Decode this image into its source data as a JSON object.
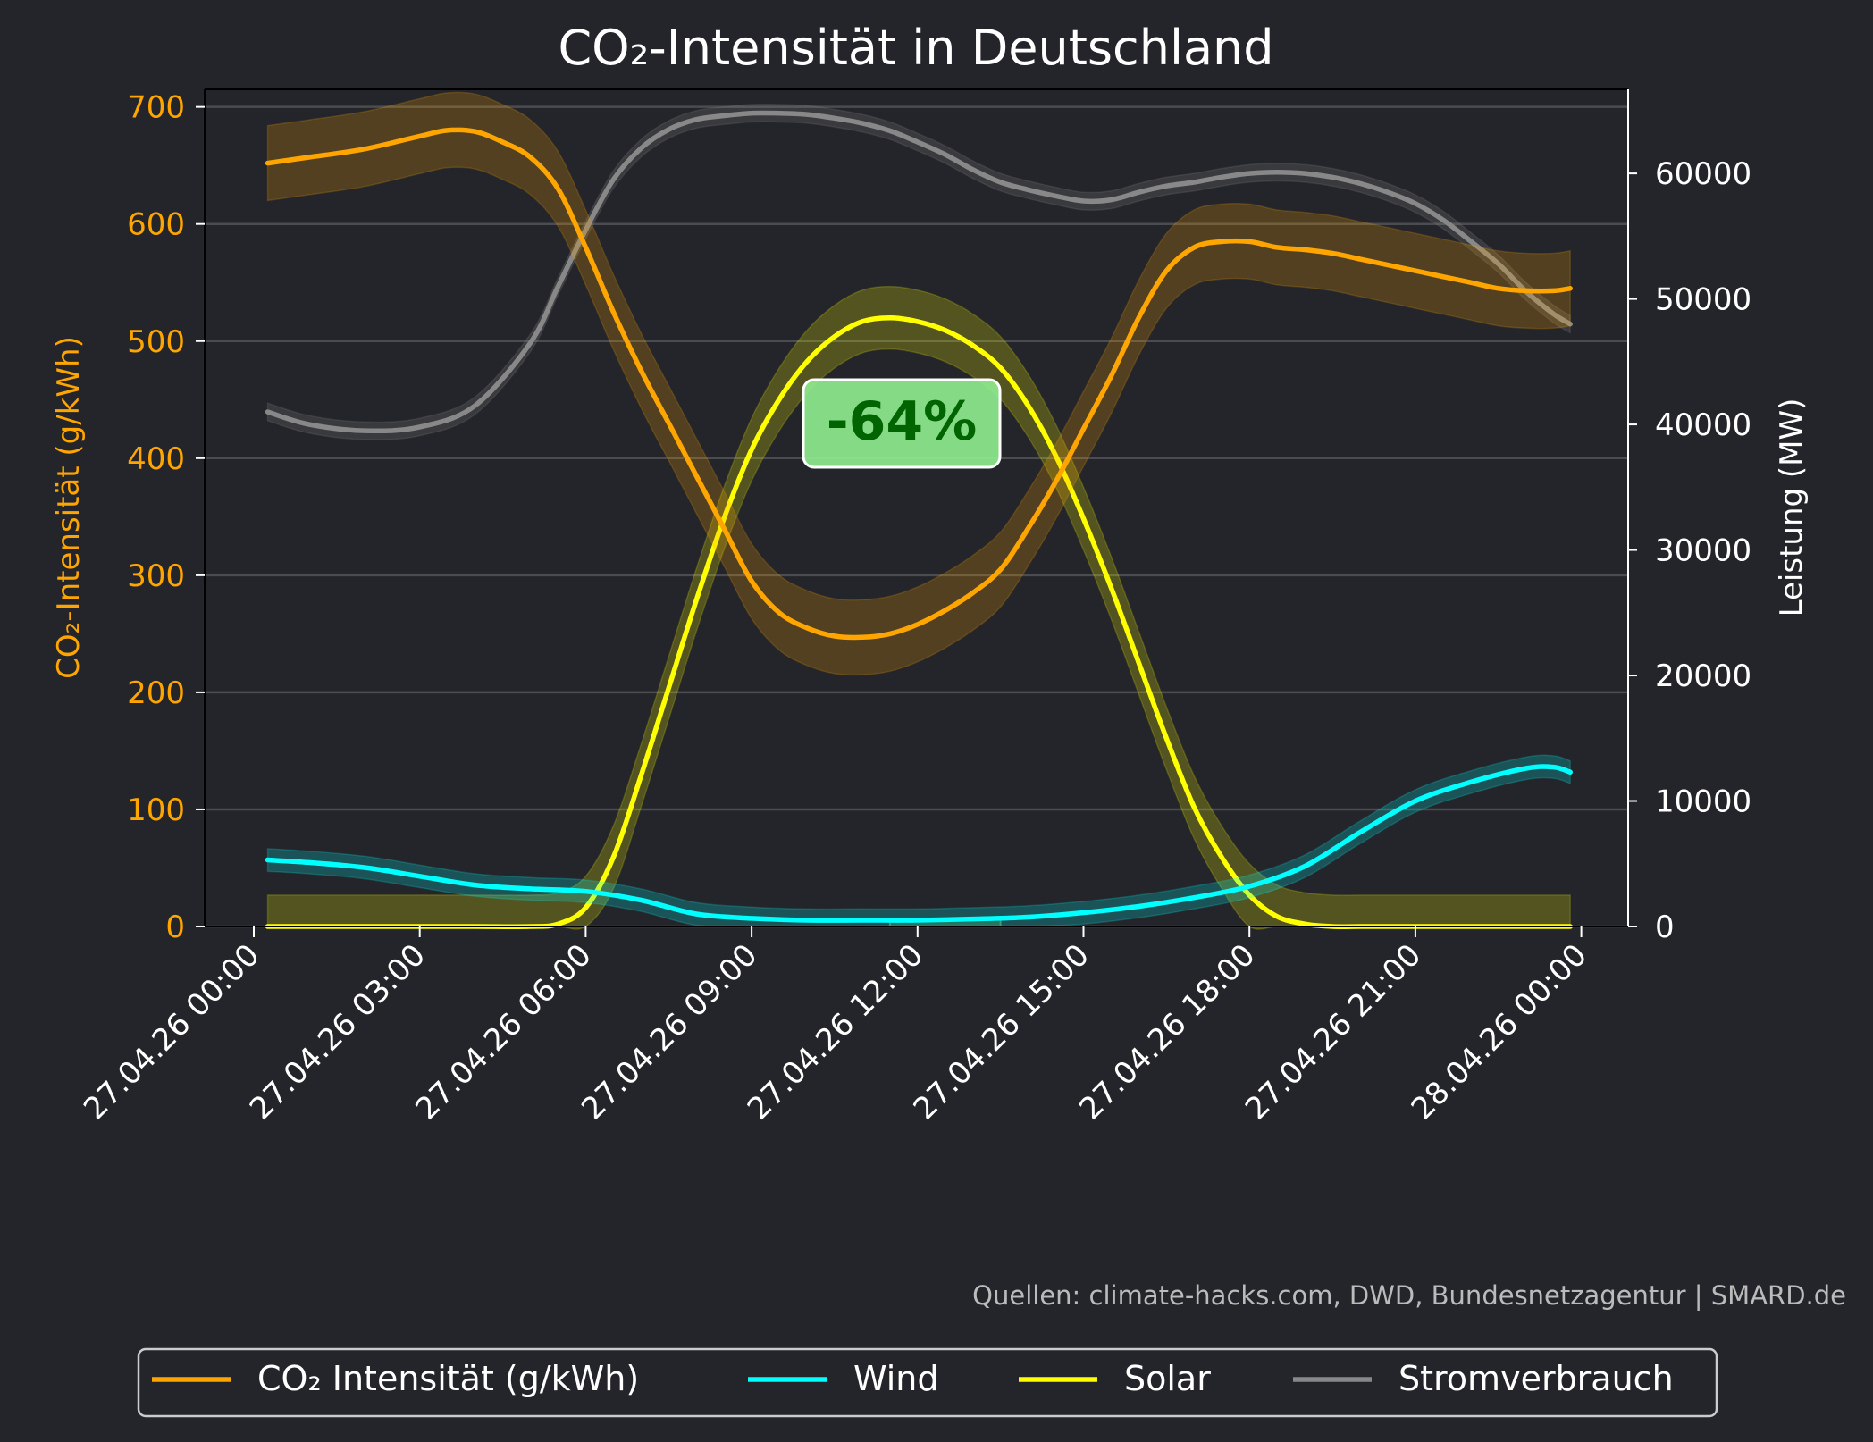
{
  "chart_data": {
    "type": "line",
    "title": "CO₂-Intensität in Deutschland",
    "x_axis": {
      "range": [
        "27.04.26 00:00",
        "28.04.26 00:00"
      ],
      "ticks": [
        "27.04.26 00:00",
        "27.04.26 03:00",
        "27.04.26 06:00",
        "27.04.26 09:00",
        "27.04.26 12:00",
        "27.04.26 15:00",
        "27.04.26 18:00",
        "27.04.26 21:00",
        "28.04.26 00:00"
      ]
    },
    "y_left": {
      "label": "CO₂-Intensität (g/kWh)",
      "range": [
        0,
        715
      ],
      "ticks": [
        0,
        100,
        200,
        300,
        400,
        500,
        600,
        700
      ]
    },
    "y_right": {
      "label": "Leistung (MW)",
      "range": [
        0,
        66700
      ],
      "ticks": [
        0,
        10000,
        20000,
        30000,
        40000,
        50000,
        60000
      ]
    },
    "grid": true,
    "highlight": {
      "x_start": 11.5,
      "x_end": 13.5,
      "label": "-64%"
    },
    "series": [
      {
        "name": "CO₂ Intensität (g/kWh)",
        "axis": "left",
        "color": "#ffa500",
        "band": 32,
        "x": [
          0.25,
          1,
          2,
          3,
          3.5,
          4,
          4.5,
          5,
          5.5,
          6,
          6.5,
          7,
          7.5,
          8,
          8.5,
          9,
          9.5,
          10,
          10.5,
          11,
          11.5,
          12,
          12.5,
          13,
          13.5,
          14,
          14.5,
          15,
          15.5,
          16,
          16.5,
          17,
          17.5,
          18,
          18.5,
          19,
          19.5,
          20,
          20.5,
          21,
          21.5,
          22,
          22.5,
          23,
          23.5,
          23.8
        ],
        "y": [
          652,
          657,
          664,
          675,
          680,
          679,
          670,
          657,
          630,
          580,
          525,
          475,
          430,
          385,
          340,
          295,
          268,
          255,
          248,
          247,
          250,
          258,
          270,
          285,
          305,
          340,
          380,
          425,
          470,
          520,
          560,
          580,
          585,
          585,
          580,
          578,
          575,
          570,
          565,
          560,
          555,
          550,
          545,
          543,
          543,
          545
        ]
      },
      {
        "name": "Wind",
        "axis": "right",
        "color": "#00ffff",
        "band": 900,
        "x": [
          0.25,
          1,
          2,
          3,
          4,
          5,
          6,
          7,
          8,
          9,
          10,
          11,
          12,
          13,
          14,
          15,
          16,
          17,
          18,
          19,
          20,
          21,
          22,
          23,
          23.5,
          23.8
        ],
        "y": [
          5300,
          5100,
          4700,
          4000,
          3300,
          3000,
          2800,
          2100,
          1000,
          650,
          500,
          500,
          500,
          600,
          750,
          1100,
          1600,
          2300,
          3200,
          4800,
          7500,
          10000,
          11500,
          12600,
          12700,
          12300
        ]
      },
      {
        "name": "Solar",
        "axis": "right",
        "color": "#ffff00",
        "band": 2500,
        "x": [
          0.25,
          1,
          2,
          3,
          4,
          5,
          5.5,
          6,
          6.5,
          7,
          7.5,
          8,
          8.5,
          9,
          9.5,
          10,
          10.5,
          11,
          11.5,
          12,
          12.5,
          13,
          13.5,
          14,
          14.5,
          15,
          15.5,
          16,
          16.5,
          17,
          17.5,
          18,
          18.5,
          19,
          19.5,
          20,
          20.5,
          21,
          22,
          23,
          23.8
        ],
        "y": [
          0,
          0,
          0,
          0,
          0,
          0,
          200,
          1500,
          5500,
          12000,
          19000,
          26000,
          32500,
          38000,
          42000,
          45000,
          47000,
          48200,
          48500,
          48200,
          47500,
          46300,
          44500,
          41500,
          37500,
          32500,
          27000,
          21000,
          15000,
          9500,
          5500,
          2500,
          800,
          200,
          0,
          0,
          0,
          0,
          0,
          0,
          0
        ]
      },
      {
        "name": "Stromverbrauch",
        "axis": "right",
        "color": "#888888",
        "band": 700,
        "x": [
          0.25,
          1,
          2,
          3,
          4,
          5,
          5.5,
          6,
          6.5,
          7,
          7.5,
          8,
          8.5,
          9,
          9.5,
          10,
          10.5,
          11,
          11.5,
          12,
          12.5,
          13,
          13.5,
          14,
          14.5,
          15,
          15.5,
          16,
          16.5,
          17,
          17.5,
          18,
          18.5,
          19,
          19.5,
          20,
          20.5,
          21,
          21.5,
          22,
          22.5,
          23,
          23.5,
          23.8
        ],
        "y": [
          41000,
          40000,
          39500,
          39800,
          41500,
          46500,
          51000,
          55500,
          59500,
          62000,
          63500,
          64300,
          64600,
          64800,
          64800,
          64700,
          64400,
          64000,
          63400,
          62500,
          61500,
          60300,
          59300,
          58700,
          58200,
          57800,
          57900,
          58500,
          59000,
          59300,
          59700,
          60000,
          60100,
          60000,
          59700,
          59200,
          58500,
          57600,
          56300,
          54600,
          52800,
          50600,
          48800,
          48000
        ]
      }
    ],
    "legend": {
      "placement": "bottom",
      "entries": [
        {
          "label": "CO₂ Intensität (g/kWh)",
          "color": "#ffa500"
        },
        {
          "label": "Wind",
          "color": "#00ffff"
        },
        {
          "label": "Solar",
          "color": "#ffff00"
        },
        {
          "label": "Stromverbrauch",
          "color": "#888888"
        }
      ]
    },
    "source": "Quellen: climate-hacks.com, DWD, Bundesnetzagentur | SMARD.de"
  }
}
